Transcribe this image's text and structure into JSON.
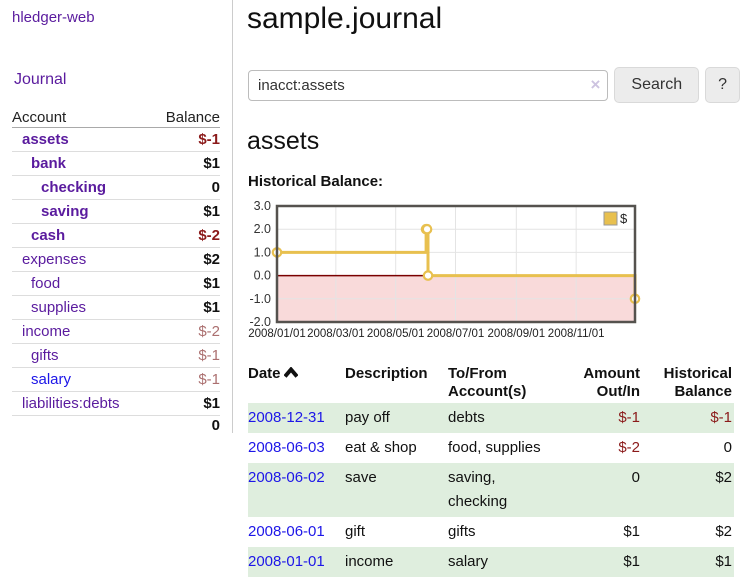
{
  "app": {
    "brand": "hledger-web"
  },
  "sidebar": {
    "nav_journal": "Journal",
    "accounts_table": {
      "header_account": "Account",
      "header_balance": "Balance",
      "rows": [
        {
          "name": "assets",
          "depth": 1,
          "name_class": "an-b",
          "balance": "$-1",
          "balance_class": "bv-negs"
        },
        {
          "name": "bank",
          "depth": 2,
          "name_class": "an-b",
          "balance": "$1",
          "balance_class": ""
        },
        {
          "name": "checking",
          "depth": 3,
          "name_class": "an-b",
          "balance": "0",
          "balance_class": ""
        },
        {
          "name": "saving",
          "depth": 3,
          "name_class": "an-b",
          "balance": "$1",
          "balance_class": ""
        },
        {
          "name": "cash",
          "depth": 2,
          "name_class": "an-b",
          "balance": "$-2",
          "balance_class": "bv-negs"
        },
        {
          "name": "expenses",
          "depth": 1,
          "name_class": "",
          "balance": "$2",
          "balance_class": ""
        },
        {
          "name": "food",
          "depth": 2,
          "name_class": "",
          "balance": "$1",
          "balance_class": ""
        },
        {
          "name": "supplies",
          "depth": 2,
          "name_class": "",
          "balance": "$1",
          "balance_class": ""
        },
        {
          "name": "income",
          "depth": 1,
          "name_class": "",
          "balance": "$-2",
          "balance_class": "bv-soft"
        },
        {
          "name": "gifts",
          "depth": 2,
          "name_class": "",
          "balance": "$-1",
          "balance_class": "bv-soft"
        },
        {
          "name": "salary",
          "depth": 2,
          "name_class": "blue",
          "balance": "$-1",
          "balance_class": "bv-soft"
        },
        {
          "name": "liabilities:debts",
          "depth": 1,
          "name_class": "",
          "balance": "$1",
          "balance_class": ""
        }
      ],
      "total": "0"
    }
  },
  "header": {
    "title": "sample.journal"
  },
  "search": {
    "value": "inacct:assets",
    "clear_icon": "×",
    "button_label": "Search",
    "help_label": "?"
  },
  "account_page": {
    "heading": "assets",
    "chart_title": "Historical Balance:"
  },
  "chart_data": {
    "type": "line",
    "step": true,
    "title": "Historical Balance",
    "series": [
      {
        "name": "$",
        "color": "#e8c04f",
        "points": [
          [
            "2008-01-01",
            1
          ],
          [
            "2008-06-01",
            2
          ],
          [
            "2008-06-02",
            2
          ],
          [
            "2008-06-03",
            0
          ],
          [
            "2008-12-31",
            -1
          ]
        ]
      }
    ],
    "x_range": [
      "2008-01-01",
      "2008-12-31"
    ],
    "x_tick_dates": [
      "2008-01-01",
      "2008-03-01",
      "2008-05-01",
      "2008-07-01",
      "2008-09-01",
      "2008-11-01"
    ],
    "x_tick_labels": [
      "2008/01/01",
      "2008/03/01",
      "2008/05/01",
      "2008/07/01",
      "2008/09/01",
      "2008/11/01"
    ],
    "y_ticks": [
      3.0,
      2.0,
      1.0,
      0.0,
      -1.0,
      -2.0
    ],
    "ylim": [
      -2,
      3
    ],
    "grid": true,
    "legend": {
      "label": "$",
      "position": "top-right"
    },
    "zero_line_color": "#7a0000",
    "negative_region_fill": "#f9dada"
  },
  "register_table": {
    "headers": {
      "date": "Date",
      "description": "Description",
      "accounts": "To/From Account(s)",
      "amount": "Amount Out/In",
      "balance": "Historical Balance"
    },
    "sort": {
      "column": "date",
      "direction": "ascending"
    },
    "rows": [
      {
        "date": "2008-12-31",
        "description": "pay off",
        "accounts": "debts",
        "amount": "$-1",
        "amount_class": "neg",
        "balance": "$-1",
        "balance_class": "neg"
      },
      {
        "date": "2008-06-03",
        "description": "eat & shop",
        "accounts": "food, supplies",
        "amount": "$-2",
        "amount_class": "neg",
        "balance": "0",
        "balance_class": ""
      },
      {
        "date": "2008-06-02",
        "description": "save",
        "accounts": "saving, checking",
        "amount": "0",
        "amount_class": "",
        "balance": "$2",
        "balance_class": ""
      },
      {
        "date": "2008-06-01",
        "description": "gift",
        "accounts": "gifts",
        "amount": "$1",
        "amount_class": "",
        "balance": "$2",
        "balance_class": ""
      },
      {
        "date": "2008-01-01",
        "description": "income",
        "accounts": "salary",
        "amount": "$1",
        "amount_class": "",
        "balance": "$1",
        "balance_class": ""
      }
    ]
  },
  "colors": {
    "accent_purple": "#5a1b9e",
    "link_blue": "#1d16e8",
    "negative_strong": "#8b1a1a",
    "negative_soft": "#ab6f6f",
    "row_green": "#dfeede",
    "chart_line": "#e8c04f",
    "chart_zero_line": "#7a0000",
    "chart_negative_fill": "#f9dada"
  }
}
